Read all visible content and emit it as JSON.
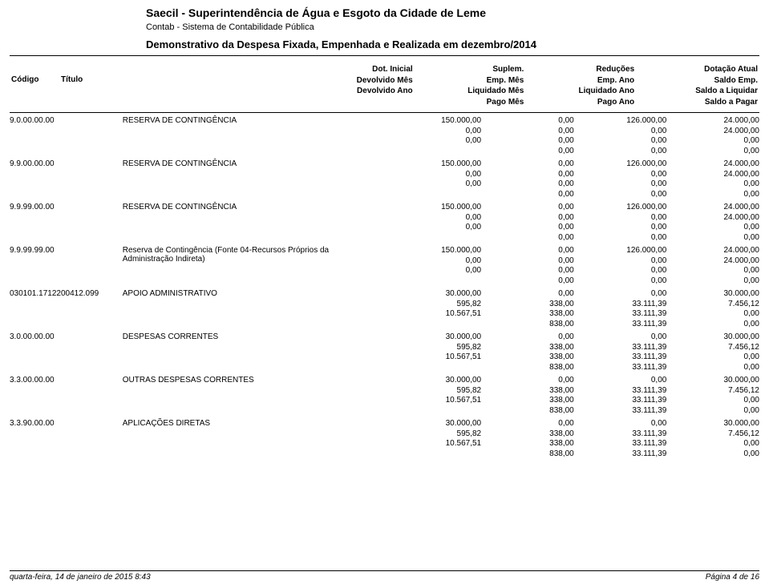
{
  "header": {
    "org": "Saecil - Superintendência de Água e Esgoto da Cidade de Leme",
    "system": "Contab - Sistema de Contabilidade Pública",
    "report": "Demonstrativo da Despesa Fixada, Empenhada e Realizada em dezembro/2014"
  },
  "columns": {
    "code": "Código",
    "title": "Título",
    "g1": {
      "l1": "Dot. Inicial",
      "l2": "Devolvido Mês",
      "l3": "Devolvido Ano"
    },
    "g2": {
      "l1": "Suplem.",
      "l2": "Emp. Mês",
      "l3": "Liquidado Mês",
      "l4": "Pago Mês"
    },
    "g3": {
      "l1": "Reduções",
      "l2": "Emp. Ano",
      "l3": "Liquidado Ano",
      "l4": "Pago Ano"
    },
    "g4": {
      "l1": "Dotação Atual",
      "l2": "Saldo Emp.",
      "l3": "Saldo a Liquidar",
      "l4": "Saldo a Pagar"
    }
  },
  "rows": [
    {
      "code": "9.0.00.00.00",
      "title": "RESERVA DE CONTINGÊNCIA",
      "c1": [
        "150.000,00",
        "0,00",
        "0,00",
        ""
      ],
      "c2": [
        "0,00",
        "0,00",
        "0,00",
        "0,00"
      ],
      "c3": [
        "126.000,00",
        "0,00",
        "0,00",
        "0,00"
      ],
      "c4": [
        "24.000,00",
        "24.000,00",
        "0,00",
        "0,00"
      ]
    },
    {
      "code": "9.9.00.00.00",
      "title": "RESERVA DE CONTINGÊNCIA",
      "c1": [
        "150.000,00",
        "0,00",
        "0,00",
        ""
      ],
      "c2": [
        "0,00",
        "0,00",
        "0,00",
        "0,00"
      ],
      "c3": [
        "126.000,00",
        "0,00",
        "0,00",
        "0,00"
      ],
      "c4": [
        "24.000,00",
        "24.000,00",
        "0,00",
        "0,00"
      ]
    },
    {
      "code": "9.9.99.00.00",
      "title": "RESERVA DE CONTINGÊNCIA",
      "c1": [
        "150.000,00",
        "0,00",
        "0,00",
        ""
      ],
      "c2": [
        "0,00",
        "0,00",
        "0,00",
        "0,00"
      ],
      "c3": [
        "126.000,00",
        "0,00",
        "0,00",
        "0,00"
      ],
      "c4": [
        "24.000,00",
        "24.000,00",
        "0,00",
        "0,00"
      ]
    },
    {
      "code": "9.9.99.99.00",
      "title": "Reserva de Contingência (Fonte 04-Recursos Próprios da Administração Indireta)",
      "c1": [
        "150.000,00",
        "0,00",
        "0,00",
        ""
      ],
      "c2": [
        "0,00",
        "0,00",
        "0,00",
        "0,00"
      ],
      "c3": [
        "126.000,00",
        "0,00",
        "0,00",
        "0,00"
      ],
      "c4": [
        "24.000,00",
        "24.000,00",
        "0,00",
        "0,00"
      ]
    },
    {
      "code": "030101.1712200412.099",
      "title": "APOIO ADMINISTRATIVO",
      "c1": [
        "30.000,00",
        "595,82",
        "10.567,51",
        ""
      ],
      "c2": [
        "0,00",
        "338,00",
        "338,00",
        "838,00"
      ],
      "c3": [
        "0,00",
        "33.111,39",
        "33.111,39",
        "33.111,39"
      ],
      "c4": [
        "30.000,00",
        "7.456,12",
        "0,00",
        "0,00"
      ]
    },
    {
      "code": "3.0.00.00.00",
      "title": "DESPESAS CORRENTES",
      "c1": [
        "30.000,00",
        "595,82",
        "10.567,51",
        ""
      ],
      "c2": [
        "0,00",
        "338,00",
        "338,00",
        "838,00"
      ],
      "c3": [
        "0,00",
        "33.111,39",
        "33.111,39",
        "33.111,39"
      ],
      "c4": [
        "30.000,00",
        "7.456,12",
        "0,00",
        "0,00"
      ]
    },
    {
      "code": "3.3.00.00.00",
      "title": "OUTRAS DESPESAS CORRENTES",
      "c1": [
        "30.000,00",
        "595,82",
        "10.567,51",
        ""
      ],
      "c2": [
        "0,00",
        "338,00",
        "338,00",
        "838,00"
      ],
      "c3": [
        "0,00",
        "33.111,39",
        "33.111,39",
        "33.111,39"
      ],
      "c4": [
        "30.000,00",
        "7.456,12",
        "0,00",
        "0,00"
      ]
    },
    {
      "code": "3.3.90.00.00",
      "title": "APLICAÇÕES DIRETAS",
      "c1": [
        "30.000,00",
        "595,82",
        "10.567,51",
        ""
      ],
      "c2": [
        "0,00",
        "338,00",
        "338,00",
        "838,00"
      ],
      "c3": [
        "0,00",
        "33.111,39",
        "33.111,39",
        "33.111,39"
      ],
      "c4": [
        "30.000,00",
        "7.456,12",
        "0,00",
        "0,00"
      ]
    }
  ],
  "footer": {
    "left": "quarta-feira, 14 de janeiro de 2015  8:43",
    "right": "Página 4 de 16"
  }
}
